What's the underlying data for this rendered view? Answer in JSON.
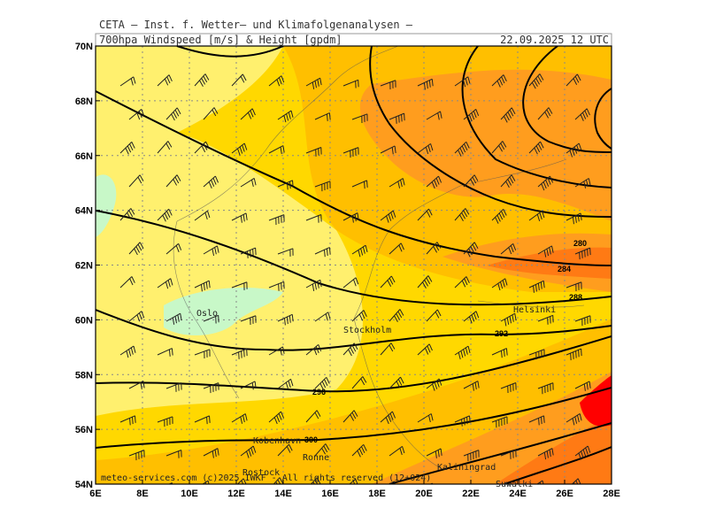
{
  "header": {
    "title": "CETA – Inst. f. Wetter– und Klimafolgenanalysen –",
    "subtitle": "700hpa Windspeed [m/s] & Height [gpdm]",
    "date": "22.09.2025 12 UTC"
  },
  "lat_labels": [
    "70N",
    "68N",
    "66N",
    "64N",
    "62N",
    "60N",
    "58N",
    "56N",
    "54N"
  ],
  "lon_labels": [
    "6E",
    "8E",
    "10E",
    "12E",
    "14E",
    "16E",
    "18E",
    "20E",
    "22E",
    "24E",
    "26E",
    "28E"
  ],
  "cities": [
    "Oslo",
    "Stockholm",
    "Helsinki",
    "Kobenhavn",
    "Ronne",
    "Rostock",
    "Kaliningrad",
    "Suwalki"
  ],
  "contour_labels": [
    "280",
    "284",
    "288",
    "292",
    "296",
    "300"
  ],
  "footer": "meteo-services.com (c)2025 IWKF - All rights reserved (12+024)"
}
